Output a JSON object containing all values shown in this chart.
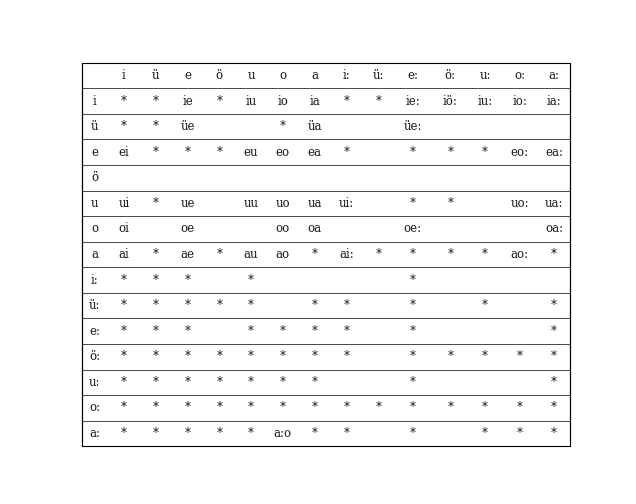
{
  "col_headers": [
    "",
    "i",
    "ü",
    "e",
    "ö",
    "u",
    "o",
    "a",
    "i:",
    "ü:",
    "e:",
    "ö:",
    "u:",
    "o:",
    "a:"
  ],
  "rows": [
    [
      "i",
      "*",
      "*",
      "ie",
      "*",
      "iu",
      "io",
      "ia",
      "*",
      "*",
      "ie:",
      "iö:",
      "iu:",
      "io:",
      "ia:"
    ],
    [
      "ü",
      "*",
      "*",
      "üe",
      "",
      "",
      "*",
      "üa",
      "",
      "",
      "üe:",
      "",
      "",
      "",
      ""
    ],
    [
      "e",
      "ei",
      "*",
      "*",
      "*",
      "eu",
      "eo",
      "ea",
      "*",
      "",
      "*",
      "*",
      "*",
      "eo:",
      "ea:"
    ],
    [
      "ö",
      "",
      "",
      "",
      "",
      "",
      "",
      "",
      "",
      "",
      "",
      "",
      "",
      "",
      ""
    ],
    [
      "u",
      "ui",
      "*",
      "ue",
      "",
      "uu",
      "uo",
      "ua",
      "ui:",
      "",
      "*",
      "*",
      "",
      "uo:",
      "ua:"
    ],
    [
      "o",
      "oi",
      "",
      "oe",
      "",
      "",
      "oo",
      "oa",
      "",
      "",
      "oe:",
      "",
      "",
      "",
      "oa:"
    ],
    [
      "a",
      "ai",
      "*",
      "ae",
      "*",
      "au",
      "ao",
      "*",
      "ai:",
      "*",
      "*",
      "*",
      "*",
      "ao:",
      "*"
    ],
    [
      "i:",
      "*",
      "*",
      "*",
      "",
      "*",
      "",
      "",
      "",
      "",
      "*",
      "",
      "",
      "",
      ""
    ],
    [
      "ü:",
      "*",
      "*",
      "*",
      "*",
      "*",
      "",
      "*",
      "*",
      "",
      "*",
      "",
      "*",
      "",
      "*"
    ],
    [
      "e:",
      "*",
      "*",
      "*",
      "",
      "*",
      "*",
      "*",
      "*",
      "",
      "*",
      "",
      "",
      "",
      "*"
    ],
    [
      "ö:",
      "*",
      "*",
      "*",
      "*",
      "*",
      "*",
      "*",
      "*",
      "",
      "*",
      "*",
      "*",
      "*",
      "*"
    ],
    [
      "u:",
      "*",
      "*",
      "*",
      "*",
      "*",
      "*",
      "*",
      "",
      "",
      "*",
      "",
      "",
      "",
      "*"
    ],
    [
      "o:",
      "*",
      "*",
      "*",
      "*",
      "*",
      "*",
      "*",
      "*",
      "*",
      "*",
      "*",
      "*",
      "*",
      "*"
    ],
    [
      "a:",
      "*",
      "*",
      "*",
      "*",
      "*",
      "a:o",
      "*",
      "*",
      "",
      "*",
      "",
      "*",
      "*",
      "*"
    ]
  ],
  "background_color": "#ffffff",
  "border_color": "#000000",
  "text_color": "#1a1a1a",
  "fontsize": 8.5,
  "col_widths_rel": [
    28,
    34,
    34,
    34,
    34,
    34,
    34,
    34,
    34,
    34,
    40,
    40,
    34,
    40,
    34
  ]
}
